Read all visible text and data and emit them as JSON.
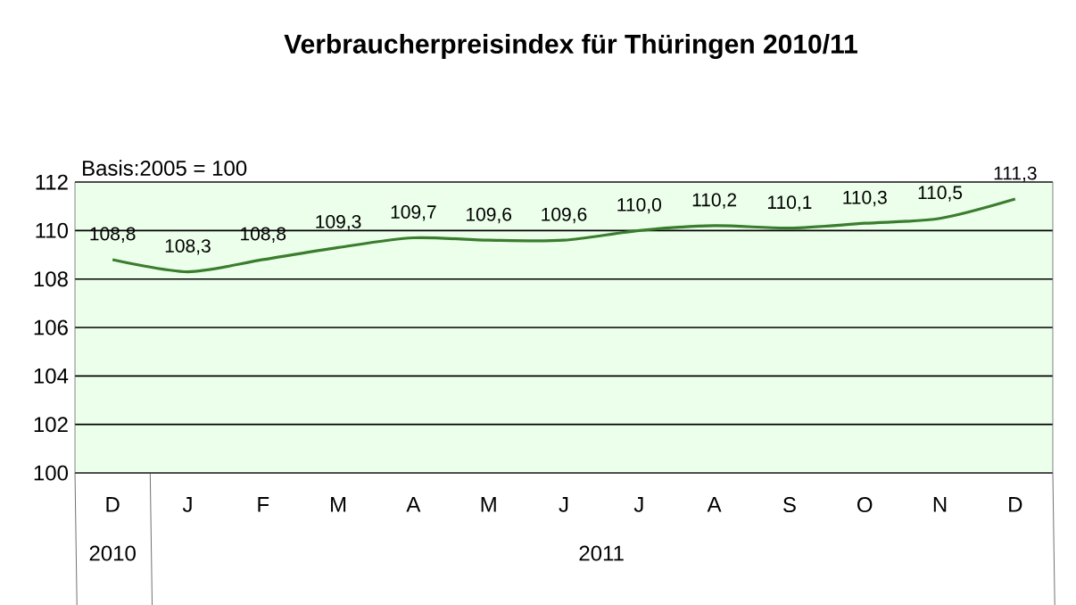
{
  "chart_data": {
    "type": "line",
    "title": "Verbraucherpreisindex für Thüringen 2010/11",
    "categories": [
      "D",
      "J",
      "F",
      "M",
      "A",
      "M",
      "J",
      "J",
      "A",
      "S",
      "O",
      "N",
      "D"
    ],
    "series": [
      {
        "color": "#3b7d2e",
        "values": [
          108.8,
          108.3,
          108.8,
          109.3,
          109.7,
          109.6,
          109.6,
          110.0,
          110.2,
          110.1,
          110.3,
          110.5,
          111.3
        ],
        "value_labels": [
          "108,8",
          "108,3",
          "108,8",
          "109,3",
          "109,7",
          "109,6",
          "109,6",
          "110,0",
          "110,2",
          "110,1",
          "110,3",
          "110,5",
          "111,3"
        ]
      }
    ],
    "ylim": [
      100,
      112
    ],
    "yticks": [
      100,
      102,
      104,
      106,
      108,
      110,
      112
    ],
    "grid": "y",
    "marker": "none",
    "line_style": "solid",
    "annotations": [
      "Basis:2005  = 100",
      "2010",
      "2011"
    ]
  }
}
